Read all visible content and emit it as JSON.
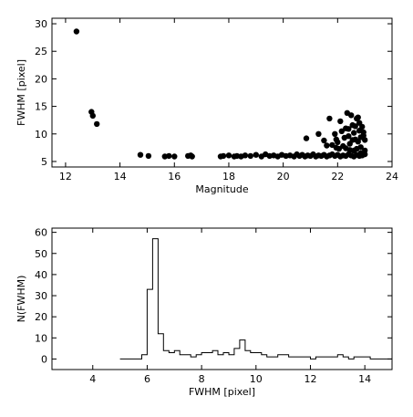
{
  "chart_data": [
    {
      "type": "scatter",
      "xlabel": "Magnitude",
      "ylabel": "FWHM [pixel]",
      "xlim": [
        11.5,
        24
      ],
      "ylim": [
        4,
        31
      ],
      "xticks": [
        12,
        14,
        16,
        18,
        20,
        22,
        24
      ],
      "yticks": [
        5,
        10,
        15,
        20,
        25,
        30
      ],
      "points": [
        [
          12.4,
          28.6
        ],
        [
          12.95,
          14.0
        ],
        [
          13.0,
          13.3
        ],
        [
          13.15,
          11.8
        ],
        [
          14.75,
          6.2
        ],
        [
          15.05,
          6.0
        ],
        [
          15.65,
          5.9
        ],
        [
          15.8,
          6.0
        ],
        [
          16.0,
          5.9
        ],
        [
          16.5,
          6.0
        ],
        [
          16.6,
          6.1
        ],
        [
          16.65,
          5.9
        ],
        [
          17.7,
          5.9
        ],
        [
          17.8,
          6.0
        ],
        [
          18.0,
          6.1
        ],
        [
          18.2,
          5.9
        ],
        [
          18.3,
          6.0
        ],
        [
          18.45,
          5.9
        ],
        [
          18.6,
          6.1
        ],
        [
          18.8,
          6.0
        ],
        [
          19.0,
          6.2
        ],
        [
          19.2,
          5.9
        ],
        [
          19.35,
          6.3
        ],
        [
          19.5,
          6.0
        ],
        [
          19.65,
          6.1
        ],
        [
          19.8,
          5.9
        ],
        [
          19.95,
          6.2
        ],
        [
          20.1,
          6.0
        ],
        [
          20.25,
          6.1
        ],
        [
          20.4,
          5.9
        ],
        [
          20.5,
          6.3
        ],
        [
          20.6,
          6.0
        ],
        [
          20.7,
          6.2
        ],
        [
          20.8,
          5.9
        ],
        [
          20.9,
          6.1
        ],
        [
          21.0,
          6.0
        ],
        [
          21.1,
          6.3
        ],
        [
          21.2,
          5.9
        ],
        [
          21.3,
          6.1
        ],
        [
          21.4,
          6.0
        ],
        [
          21.5,
          6.2
        ],
        [
          21.6,
          5.9
        ],
        [
          21.7,
          6.1
        ],
        [
          21.8,
          6.3
        ],
        [
          21.9,
          6.0
        ],
        [
          22.0,
          6.2
        ],
        [
          22.1,
          5.9
        ],
        [
          22.2,
          6.1
        ],
        [
          22.3,
          6.0
        ],
        [
          22.4,
          6.3
        ],
        [
          22.5,
          6.1
        ],
        [
          22.6,
          5.9
        ],
        [
          22.7,
          6.2
        ],
        [
          22.8,
          6.0
        ],
        [
          22.9,
          6.1
        ],
        [
          23.0,
          6.3
        ],
        [
          22.85,
          6.5
        ],
        [
          22.95,
          6.4
        ],
        [
          20.85,
          9.2
        ],
        [
          21.3,
          10.0
        ],
        [
          21.5,
          8.8
        ],
        [
          21.6,
          7.9
        ],
        [
          21.8,
          8.0
        ],
        [
          21.95,
          7.5
        ],
        [
          21.7,
          12.8
        ],
        [
          21.9,
          10.0
        ],
        [
          22.0,
          8.5
        ],
        [
          22.1,
          12.3
        ],
        [
          22.2,
          7.8
        ],
        [
          22.3,
          11.0
        ],
        [
          22.35,
          13.8
        ],
        [
          22.4,
          9.6
        ],
        [
          22.45,
          8.2
        ],
        [
          22.5,
          13.4
        ],
        [
          22.55,
          11.6
        ],
        [
          22.6,
          10.2
        ],
        [
          22.65,
          9.0
        ],
        [
          22.7,
          12.8
        ],
        [
          22.75,
          8.6
        ],
        [
          22.8,
          10.6
        ],
        [
          22.85,
          7.6
        ],
        [
          22.9,
          11.3
        ],
        [
          22.95,
          9.7
        ],
        [
          23.0,
          8.9
        ],
        [
          22.25,
          9.3
        ],
        [
          22.45,
          7.1
        ],
        [
          22.7,
          7.3
        ],
        [
          22.55,
          8.9
        ],
        [
          22.15,
          10.5
        ],
        [
          21.95,
          9.0
        ],
        [
          22.8,
          12.0
        ],
        [
          22.6,
          7.0
        ],
        [
          22.3,
          7.4
        ],
        [
          23.0,
          7.0
        ],
        [
          22.85,
          9.4
        ],
        [
          22.4,
          10.9
        ],
        [
          22.65,
          11.4
        ],
        [
          22.95,
          10.3
        ],
        [
          22.75,
          13.0
        ],
        [
          22.05,
          7.3
        ]
      ]
    },
    {
      "type": "histogram",
      "xlabel": "FWHM [pixel]",
      "ylabel": "N(FWHM)",
      "xlim": [
        2.5,
        15
      ],
      "ylim": [
        -5,
        62
      ],
      "xticks": [
        4,
        6,
        8,
        10,
        12,
        14
      ],
      "yticks": [
        0,
        10,
        20,
        30,
        40,
        50,
        60
      ],
      "bin_width": 0.2,
      "bins": [
        [
          5.0,
          0
        ],
        [
          5.2,
          0
        ],
        [
          5.4,
          0
        ],
        [
          5.6,
          0
        ],
        [
          5.8,
          2
        ],
        [
          6.0,
          33
        ],
        [
          6.2,
          57
        ],
        [
          6.4,
          12
        ],
        [
          6.6,
          4
        ],
        [
          6.8,
          3
        ],
        [
          7.0,
          4
        ],
        [
          7.2,
          2
        ],
        [
          7.4,
          2
        ],
        [
          7.6,
          1
        ],
        [
          7.8,
          2
        ],
        [
          8.0,
          3
        ],
        [
          8.2,
          3
        ],
        [
          8.4,
          4
        ],
        [
          8.6,
          2
        ],
        [
          8.8,
          3
        ],
        [
          9.0,
          2
        ],
        [
          9.2,
          5
        ],
        [
          9.4,
          9
        ],
        [
          9.6,
          4
        ],
        [
          9.8,
          3
        ],
        [
          10.0,
          3
        ],
        [
          10.2,
          2
        ],
        [
          10.4,
          1
        ],
        [
          10.6,
          1
        ],
        [
          10.8,
          2
        ],
        [
          11.0,
          2
        ],
        [
          11.2,
          1
        ],
        [
          11.4,
          1
        ],
        [
          11.6,
          1
        ],
        [
          11.8,
          1
        ],
        [
          12.0,
          0
        ],
        [
          12.2,
          1
        ],
        [
          12.4,
          1
        ],
        [
          12.6,
          1
        ],
        [
          12.8,
          1
        ],
        [
          13.0,
          2
        ],
        [
          13.2,
          1
        ],
        [
          13.4,
          0
        ],
        [
          13.6,
          1
        ],
        [
          13.8,
          1
        ],
        [
          14.0,
          1
        ],
        [
          14.2,
          0
        ],
        [
          14.4,
          0
        ],
        [
          14.6,
          0
        ],
        [
          14.8,
          0
        ]
      ]
    }
  ]
}
